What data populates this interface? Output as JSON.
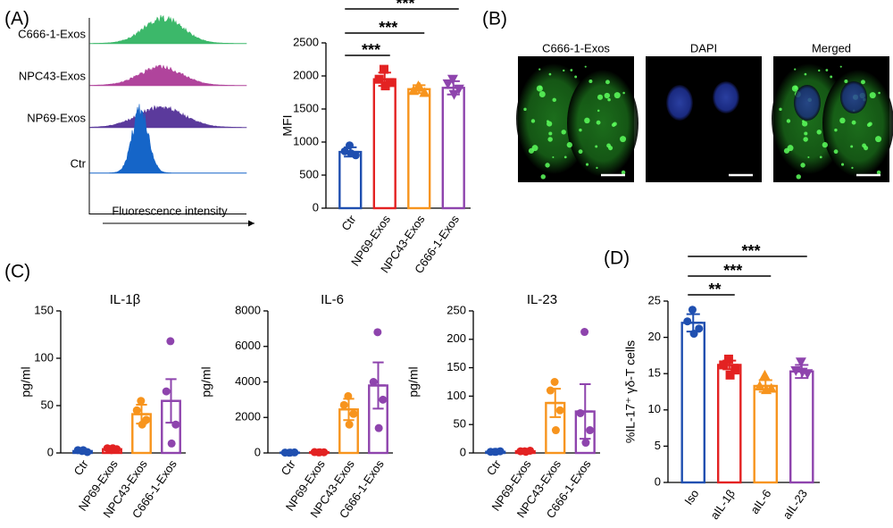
{
  "panel_labels": [
    "(A)",
    "(B)",
    "(C)",
    "(D)"
  ],
  "histogram": {
    "rows": [
      "C666-1-Exos",
      "NPC43-Exos",
      "NP69-Exos",
      "Ctr"
    ],
    "xlabel": "Fluorescence intensity"
  },
  "microscopy": {
    "channels": [
      "C666-1-Exos",
      "DAPI",
      "Merged"
    ]
  },
  "chart_data": [
    {
      "type": "bar",
      "ylabel": "MFI",
      "categories": [
        "Ctr",
        "NP69-Exos",
        "NPC43-Exos",
        "C666-1-Exos"
      ],
      "values": [
        850,
        1950,
        1800,
        1820
      ],
      "errors": [
        70,
        100,
        60,
        100
      ],
      "points": [
        [
          950,
          860,
          800,
          830
        ],
        [
          2100,
          1950,
          1900,
          1850
        ],
        [
          1850,
          1780,
          1750,
          1830
        ],
        [
          1950,
          1880,
          1800,
          1720
        ]
      ],
      "colors": [
        "#1f4fb0",
        "#e32222",
        "#f7941d",
        "#8e44ad"
      ],
      "markers": [
        "circle",
        "square",
        "triangle",
        "triangle-down"
      ],
      "ylim": [
        0,
        2500
      ],
      "yticks": [
        0,
        500,
        1000,
        1500,
        2000,
        2500
      ],
      "significance": [
        {
          "from": 0,
          "to": 1,
          "label": "***"
        },
        {
          "from": 0,
          "to": 2,
          "label": "***"
        },
        {
          "from": 0,
          "to": 3,
          "label": "***"
        }
      ]
    },
    {
      "type": "bar",
      "title": "IL-1β",
      "ylabel": "pg/ml",
      "categories": [
        "Ctr",
        "NP69-Exos",
        "NPC43-Exos",
        "C666-1-Exos"
      ],
      "values": [
        2,
        4,
        41,
        55
      ],
      "errors": [
        1,
        1,
        10,
        23
      ],
      "points": [
        [
          2,
          3,
          1,
          3
        ],
        [
          3,
          5,
          4,
          5
        ],
        [
          55,
          45,
          35,
          30
        ],
        [
          118,
          65,
          30,
          10
        ]
      ],
      "colors": [
        "#1f4fb0",
        "#e32222",
        "#f7941d",
        "#8e44ad"
      ],
      "markers": [
        "circle",
        "circle",
        "circle",
        "circle"
      ],
      "ylim": [
        0,
        150
      ],
      "yticks": [
        0,
        50,
        100,
        150
      ]
    },
    {
      "type": "bar",
      "title": "IL-6",
      "ylabel": "pg/ml",
      "categories": [
        "Ctr",
        "NP69-Exos",
        "NPC43-Exos",
        "C666-1-Exos"
      ],
      "values": [
        20,
        40,
        2450,
        3800
      ],
      "errors": [
        5,
        10,
        600,
        1300
      ],
      "points": [
        [
          10,
          20,
          30,
          20
        ],
        [
          30,
          50,
          40,
          40
        ],
        [
          3200,
          2700,
          2200,
          1600
        ],
        [
          6800,
          4000,
          3000,
          1400
        ]
      ],
      "colors": [
        "#1f4fb0",
        "#e32222",
        "#f7941d",
        "#8e44ad"
      ],
      "markers": [
        "circle",
        "circle",
        "circle",
        "circle"
      ],
      "ylim": [
        0,
        8000
      ],
      "yticks": [
        0,
        2000,
        4000,
        6000,
        8000
      ]
    },
    {
      "type": "bar",
      "title": "IL-23",
      "ylabel": "pg/ml",
      "categories": [
        "Ctr",
        "NP69-Exos",
        "NPC43-Exos",
        "C666-1-Exos"
      ],
      "values": [
        2,
        3,
        88,
        73
      ],
      "errors": [
        0.5,
        0.5,
        25,
        48
      ],
      "points": [
        [
          2,
          2,
          3,
          2
        ],
        [
          3,
          3,
          4,
          2
        ],
        [
          125,
          110,
          75,
          40
        ],
        [
          213,
          70,
          40,
          18
        ]
      ],
      "colors": [
        "#1f4fb0",
        "#e32222",
        "#f7941d",
        "#8e44ad"
      ],
      "markers": [
        "circle",
        "circle",
        "circle",
        "circle"
      ],
      "ylim": [
        0,
        250
      ],
      "yticks": [
        0,
        50,
        100,
        150,
        200,
        250
      ]
    },
    {
      "type": "bar",
      "ylabel": "%IL-17⁺ γδ-T cells",
      "categories": [
        "Iso",
        "aIL-1β",
        "aIL-6",
        "aIL-23"
      ],
      "values": [
        22,
        16.2,
        13.3,
        15.3
      ],
      "errors": [
        1.2,
        0.6,
        0.8,
        0.9
      ],
      "points": [
        [
          23.8,
          22.2,
          21.2,
          20.5
        ],
        [
          17,
          16.2,
          15.5,
          14.8
        ],
        [
          14.8,
          13.3,
          13,
          12.8
        ],
        [
          16.6,
          15.4,
          15,
          15.2
        ]
      ],
      "colors": [
        "#1f4fb0",
        "#e32222",
        "#f7941d",
        "#8e44ad"
      ],
      "markers": [
        "circle",
        "square",
        "triangle",
        "triangle-down"
      ],
      "ylim": [
        0,
        25
      ],
      "yticks": [
        0,
        5,
        10,
        15,
        20,
        25
      ],
      "significance": [
        {
          "from": 0,
          "to": 1,
          "label": "**"
        },
        {
          "from": 0,
          "to": 2,
          "label": "***"
        },
        {
          "from": 0,
          "to": 3,
          "label": "***"
        }
      ]
    }
  ]
}
